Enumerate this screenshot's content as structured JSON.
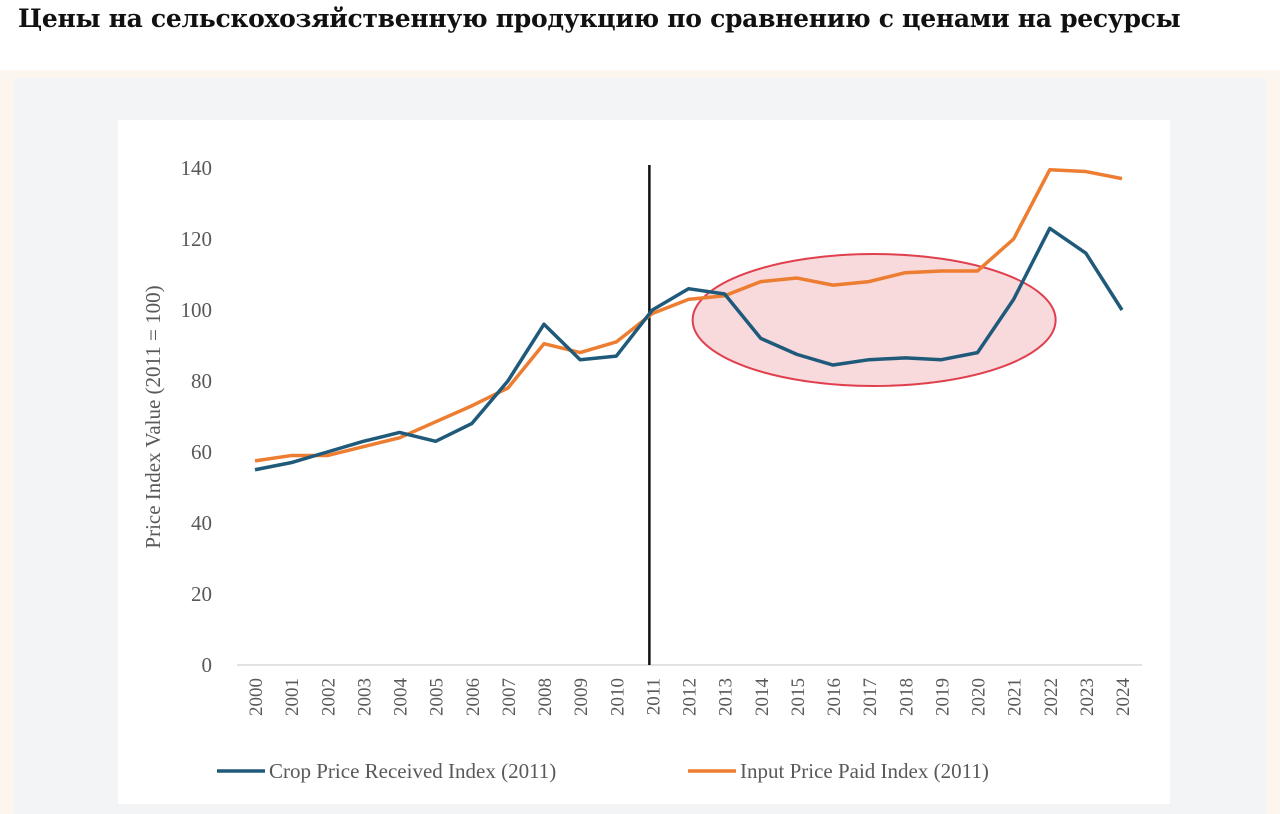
{
  "header": {
    "title": "Цены на сельскохозяйственную продукцию по сравнению с ценами на ресурсы"
  },
  "chart_data": {
    "type": "line",
    "title": "",
    "xlabel": "",
    "ylabel": "Price Index Value (2011 = 100)",
    "ylim": [
      0,
      140
    ],
    "yticks": [
      0,
      20,
      40,
      60,
      80,
      100,
      120,
      140
    ],
    "x": [
      "2000",
      "2001",
      "2002",
      "2003",
      "2004",
      "2005",
      "2006",
      "2007",
      "2008",
      "2009",
      "2010",
      "2011",
      "2012",
      "2013",
      "2014",
      "2015",
      "2016",
      "2017",
      "2018",
      "2019",
      "2020",
      "2021",
      "2022",
      "2023",
      "2024"
    ],
    "series": [
      {
        "name": "Crop Price Received Index (2011)",
        "color": "#1f5a7a",
        "values": [
          55,
          57,
          60,
          63,
          65.5,
          63,
          68,
          80,
          96,
          86,
          87,
          100,
          106,
          104.5,
          92,
          87.5,
          84.5,
          86,
          86.5,
          86,
          88,
          103,
          123,
          116,
          100
        ]
      },
      {
        "name": "Input Price Paid Index (2011)",
        "color": "#ed7d31",
        "values": [
          57.5,
          59,
          59,
          61.5,
          64,
          68.5,
          73,
          78,
          90.5,
          88,
          91,
          99,
          103,
          104,
          108,
          109,
          107,
          108,
          110.5,
          111,
          111,
          120,
          139.5,
          139,
          137
        ]
      }
    ],
    "annotations": {
      "vertical_line_at": "2011",
      "highlight_range": [
        "2013",
        "2021"
      ]
    },
    "legend": "bottom",
    "grid": false
  }
}
